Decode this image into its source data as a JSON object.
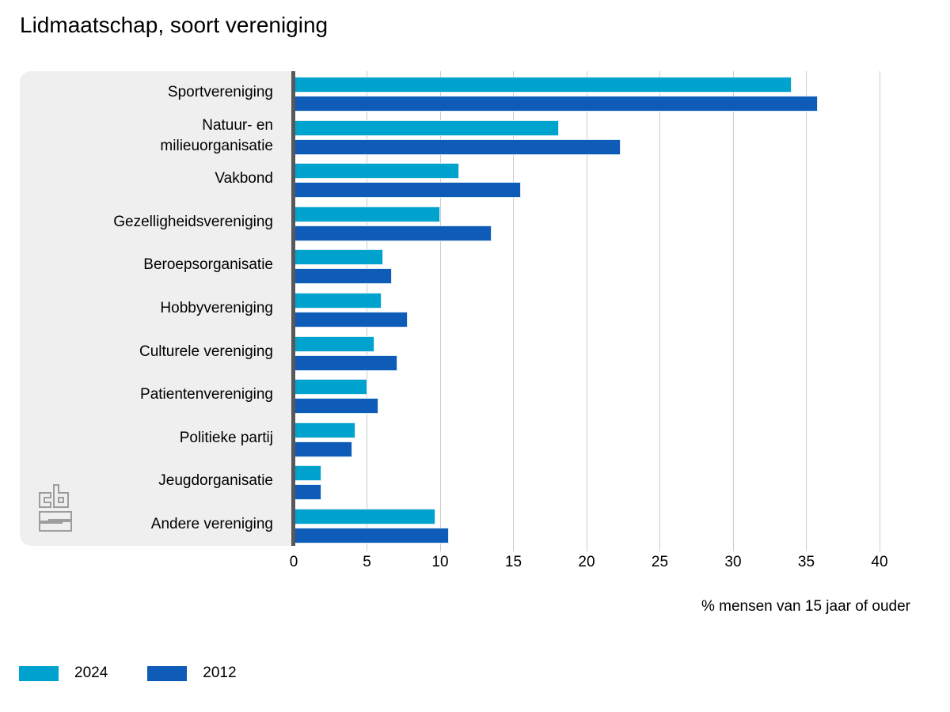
{
  "page": {
    "title": "Lidmaatschap, soort vereniging"
  },
  "chart_data": {
    "type": "bar",
    "orientation": "horizontal",
    "title": "Lidmaatschap, soort vereniging",
    "xlabel": "% mensen van 15 jaar of ouder",
    "xlim": [
      0,
      40
    ],
    "xticks": [
      0,
      5,
      10,
      15,
      20,
      25,
      30,
      35,
      40
    ],
    "grid": true,
    "legend_position": "bottom-left",
    "categories": [
      "Sportvereniging",
      "Natuur- en\nmilieuorganisatie",
      "Vakbond",
      "Gezelligheidsvereniging",
      "Beroepsorganisatie",
      "Hobbyvereniging",
      "Culturele vereniging",
      "Patientenvereniging",
      "Politieke partij",
      "Jeugdorganisatie",
      "Andere vereniging"
    ],
    "series": [
      {
        "name": "2024",
        "color": "#00a3cd",
        "values": [
          34,
          18.1,
          11.3,
          10,
          6.1,
          6,
          5.5,
          5,
          4.2,
          1.9,
          9.7
        ]
      },
      {
        "name": "2012",
        "color": "#0f5cb8",
        "values": [
          35.8,
          22.3,
          15.5,
          13.5,
          6.7,
          7.8,
          7.1,
          5.8,
          4,
          1.9,
          10.6
        ]
      }
    ]
  },
  "colors": {
    "panel": "#efefef",
    "axis_line": "#58585a",
    "gridline": "#cccccc",
    "logo": "#9d9d9d"
  },
  "branding": {
    "logo_name": "cbs-logo"
  }
}
